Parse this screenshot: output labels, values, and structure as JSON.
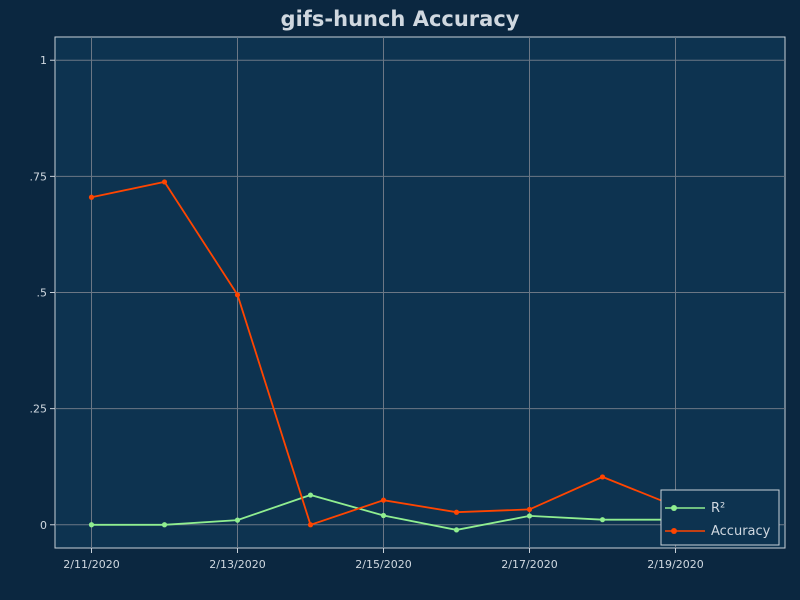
{
  "chart_data": {
    "type": "line",
    "title": "gifs-hunch Accuracy",
    "xlabel": "",
    "ylabel": "",
    "x": [
      "2020-02-11",
      "2020-02-12",
      "2020-02-13",
      "2020-02-14",
      "2020-02-15",
      "2020-02-16",
      "2020-02-17",
      "2020-02-18",
      "2020-02-19"
    ],
    "x_tick_labels": [
      "2/11/2020",
      "2/13/2020",
      "2/15/2020",
      "2/17/2020",
      "2/19/2020"
    ],
    "x_tick_dates": [
      "2020-02-11",
      "2020-02-13",
      "2020-02-15",
      "2020-02-17",
      "2020-02-19"
    ],
    "y_tick_labels": [
      "0",
      ".25",
      ".5",
      ".75",
      "1"
    ],
    "y_tick_values": [
      0,
      0.25,
      0.5,
      0.75,
      1
    ],
    "xlim": [
      "2020-02-10T12:00",
      "2020-02-20T12:00"
    ],
    "ylim": [
      -0.05,
      1.05
    ],
    "grid": true,
    "legend_position": "bottom-right",
    "series": [
      {
        "name": "R²",
        "color": "#90ee90",
        "values": [
          0.0,
          0.0,
          0.01,
          0.064,
          0.02,
          -0.011,
          0.019,
          0.011,
          0.011
        ]
      },
      {
        "name": "Accuracy",
        "color": "#ff4500",
        "values": [
          0.705,
          0.738,
          0.495,
          0.0,
          0.053,
          0.027,
          0.033,
          0.103,
          0.04
        ]
      }
    ]
  },
  "colors": {
    "page_background": "#0b2740",
    "plot_background": "#0d3350",
    "grid": "#6b7785",
    "text": "#d0d8e0",
    "axis_frame": "#c8d0d8"
  }
}
